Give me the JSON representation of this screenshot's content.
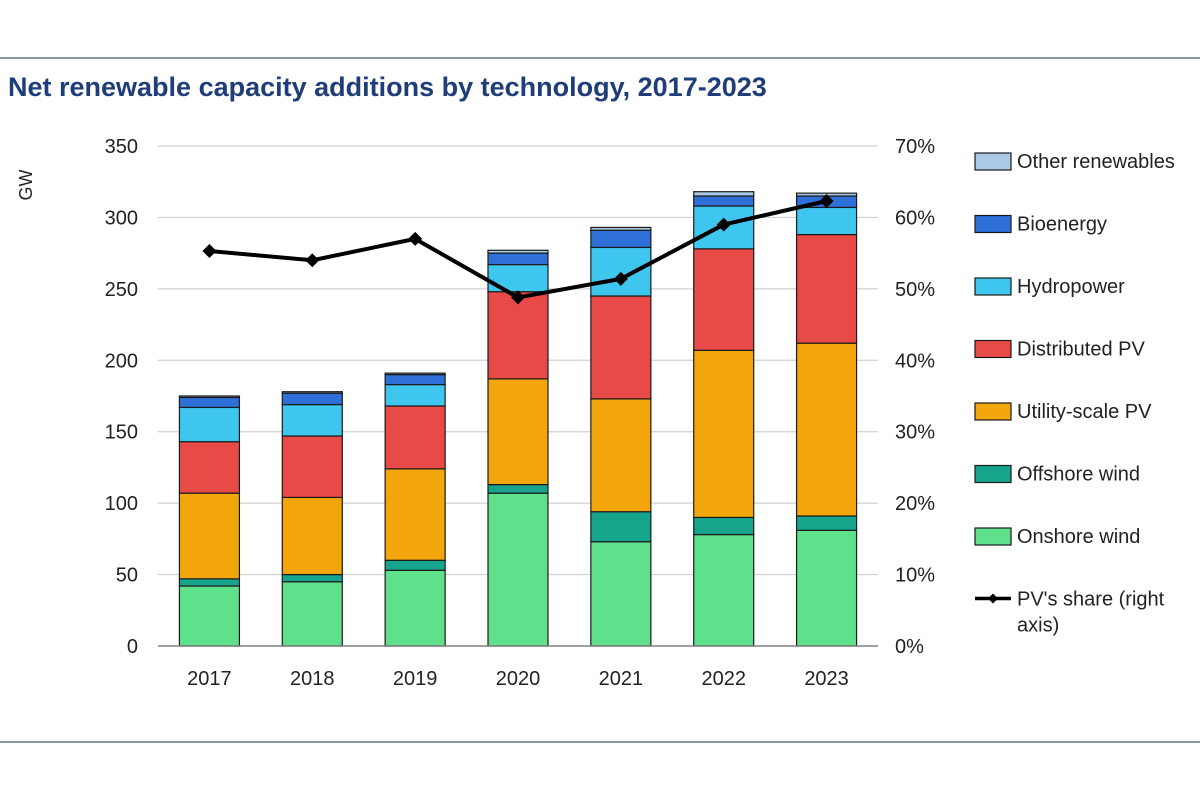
{
  "title": "Net renewable capacity additions by technology, 2017-2023",
  "chart_data": {
    "type": "bar",
    "stacked": true,
    "title": "Net renewable capacity additions by technology, 2017-2023",
    "ylabel": "GW",
    "ylim": [
      0,
      350
    ],
    "yticks": [
      0,
      50,
      100,
      150,
      200,
      250,
      300,
      350
    ],
    "y2ticks": [
      "0%",
      "10%",
      "20%",
      "30%",
      "40%",
      "50%",
      "60%",
      "70%"
    ],
    "y2lim": [
      0,
      70
    ],
    "categories": [
      "2017",
      "2018",
      "2019",
      "2020",
      "2021",
      "2022",
      "2023"
    ],
    "series": [
      {
        "name": "Onshore wind",
        "color": "#5fe08a",
        "values": [
          42,
          45,
          53,
          107,
          73,
          78,
          81
        ]
      },
      {
        "name": "Offshore wind",
        "color": "#16a58c",
        "values": [
          5,
          5,
          7,
          6,
          21,
          12,
          10
        ]
      },
      {
        "name": "Utility-scale PV",
        "color": "#f3a60c",
        "values": [
          60,
          54,
          64,
          74,
          79,
          117,
          121
        ]
      },
      {
        "name": "Distributed PV",
        "color": "#e84a47",
        "values": [
          36,
          43,
          44,
          61,
          72,
          71,
          76
        ]
      },
      {
        "name": "Hydropower",
        "color": "#3fc6ee",
        "values": [
          24,
          22,
          15,
          19,
          34,
          30,
          19
        ]
      },
      {
        "name": "Bioenergy",
        "color": "#2e6fd8",
        "values": [
          7,
          8,
          7,
          8,
          12,
          7,
          8
        ]
      },
      {
        "name": "Other renewables",
        "color": "#a9c9e6",
        "values": [
          1,
          1,
          1,
          2,
          2,
          3,
          2
        ]
      }
    ],
    "line": {
      "name": "PV's share (right axis)",
      "color": "#000000",
      "values": [
        55.3,
        54.0,
        57.0,
        48.8,
        51.4,
        59.0,
        62.3
      ]
    },
    "legend": [
      "Other renewables",
      "Bioenergy",
      "Hydropower",
      "Distributed PV",
      "Utility-scale PV",
      "Offshore wind",
      "Onshore wind",
      "PV's share (right axis)"
    ],
    "legend_position": "right",
    "grid": true
  }
}
